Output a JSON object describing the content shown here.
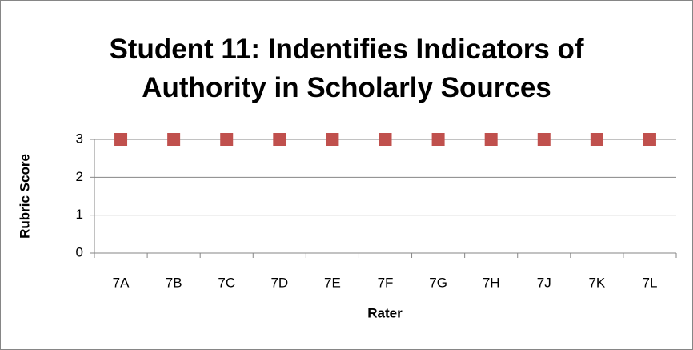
{
  "chart_data": {
    "type": "scatter",
    "title": "Student 11: Indentifies Indicators of Authority in Scholarly Sources",
    "x_label": "Rater",
    "y_label": "Rubric Score",
    "categories": [
      "7A",
      "7B",
      "7C",
      "7D",
      "7E",
      "7F",
      "7G",
      "7H",
      "7J",
      "7K",
      "7L"
    ],
    "values": [
      3,
      3,
      3,
      3,
      3,
      3,
      3,
      3,
      3,
      3,
      3
    ],
    "color": "#c0504d",
    "ylim": [
      0,
      3
    ],
    "yticks": [
      0,
      1,
      2,
      3
    ],
    "grid": true
  }
}
